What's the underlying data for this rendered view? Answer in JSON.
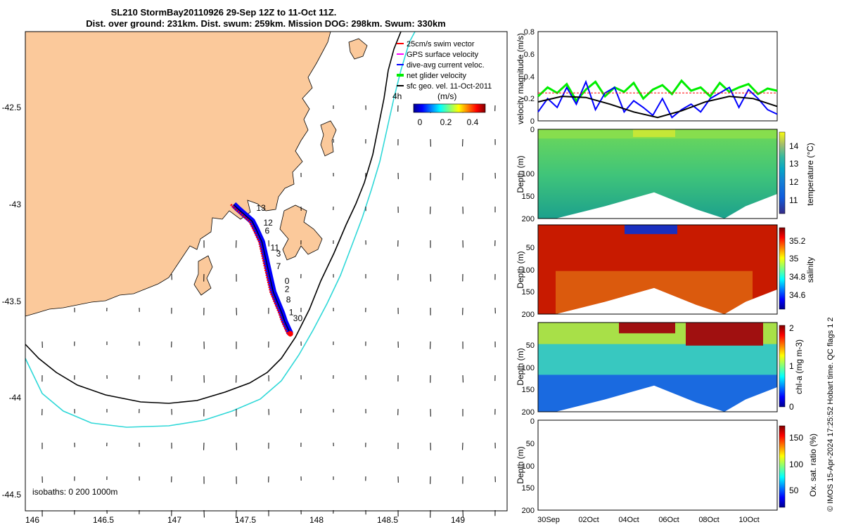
{
  "title_line1": "SL210 StormBay20110926 29-Sep 12Z to 11-Oct 11Z.",
  "title_line2": "Dist. over ground: 231km. Dist. swum: 259km. Mission DOG: 298km. Swum: 330km",
  "colors": {
    "land": "#fbc99b",
    "bathy_200": "#000000",
    "bathy_1000": "#2fd8d8",
    "track_red": "#ff0000",
    "track_blue": "#0000ff",
    "net_green": "#00ee00",
    "gps_magenta": "#ff00ff",
    "geo_black": "#000000"
  },
  "chart_data": [
    {
      "type": "scatter",
      "name": "map",
      "xlim": [
        145.95,
        149.35
      ],
      "ylim": [
        -44.55,
        -42.25
      ],
      "x_ticks": [
        146,
        146.5,
        147,
        147.5,
        148,
        148.5,
        149
      ],
      "x_tick_labels": [
        "146",
        "146.5",
        "147",
        "147.5",
        "148",
        "148.5",
        "149"
      ],
      "y_ticks": [
        -42.5,
        -43,
        -43.5,
        -44,
        -44.5
      ],
      "y_tick_labels": [
        "-42.5",
        "-43",
        "-43.5",
        "-44",
        "-44.5"
      ],
      "legend": [
        {
          "label": "25cm/s swim vector",
          "color": "#ff0000"
        },
        {
          "label": "GPS surface velocity",
          "color": "#ff00ff"
        },
        {
          "label": "dive-avg current veloc.",
          "color": "#0000ff"
        },
        {
          "label": "net glider velocity",
          "color": "#00ee00"
        },
        {
          "label": "sfc geo. vel. 11-Oct-2011",
          "color": "#000000"
        }
      ],
      "colorbar_title": "(m/s)",
      "colorbar_ticks": [
        "0",
        "0.2",
        "0.4"
      ],
      "colorbar_range": [
        0,
        0.5
      ],
      "hours_label": "4h",
      "isobath_label": "isobaths: 0   200  1000m",
      "track": [
        [
          147.42,
          -43.08
        ],
        [
          147.45,
          -43.1
        ],
        [
          147.5,
          -43.13
        ],
        [
          147.55,
          -43.16
        ],
        [
          147.58,
          -43.2
        ],
        [
          147.62,
          -43.26
        ],
        [
          147.64,
          -43.32
        ],
        [
          147.66,
          -43.38
        ],
        [
          147.68,
          -43.44
        ],
        [
          147.7,
          -43.5
        ],
        [
          147.73,
          -43.55
        ],
        [
          147.76,
          -43.6
        ],
        [
          147.78,
          -43.64
        ],
        [
          147.8,
          -43.67
        ],
        [
          147.82,
          -43.7
        ]
      ],
      "day_labels": [
        {
          "label": "13",
          "lon": 147.58,
          "lat": -43.11
        },
        {
          "label": "12",
          "lon": 147.63,
          "lat": -43.18
        },
        {
          "label": "6",
          "lon": 147.64,
          "lat": -43.22
        },
        {
          "label": "11",
          "lon": 147.68,
          "lat": -43.3
        },
        {
          "label": "3",
          "lon": 147.72,
          "lat": -43.33
        },
        {
          "label": "7",
          "lon": 147.72,
          "lat": -43.39
        },
        {
          "label": "0",
          "lon": 147.78,
          "lat": -43.46
        },
        {
          "label": "2",
          "lon": 147.78,
          "lat": -43.5
        },
        {
          "label": "8",
          "lon": 147.79,
          "lat": -43.55
        },
        {
          "label": "1",
          "lon": 147.81,
          "lat": -43.61
        },
        {
          "label": "30",
          "lon": 147.84,
          "lat": -43.64
        }
      ]
    },
    {
      "type": "line",
      "name": "velocity",
      "ylabel": "velocity magnitude (m/s)",
      "ylim": [
        0,
        0.8
      ],
      "y_ticks": [
        0,
        0.2,
        0.4,
        0.6,
        0.8
      ],
      "y_tick_labels": [
        "0",
        "0.2",
        "0.4",
        "0.6",
        "0.8"
      ],
      "series": [
        {
          "name": "net glider velocity",
          "color": "#00ee00",
          "x": [
            0,
            4,
            8,
            12,
            16,
            20,
            24,
            28,
            32,
            36,
            40,
            44,
            48,
            52,
            56,
            60,
            64,
            68,
            72,
            76,
            80,
            84,
            88,
            92,
            96,
            100
          ],
          "values": [
            0.22,
            0.3,
            0.25,
            0.33,
            0.18,
            0.28,
            0.35,
            0.22,
            0.3,
            0.26,
            0.34,
            0.2,
            0.28,
            0.32,
            0.24,
            0.36,
            0.27,
            0.3,
            0.22,
            0.34,
            0.26,
            0.3,
            0.33,
            0.24,
            0.29,
            0.27
          ]
        },
        {
          "name": "dive-avg current veloc.",
          "color": "#0000ff",
          "x": [
            0,
            4,
            8,
            12,
            16,
            20,
            24,
            28,
            32,
            36,
            40,
            44,
            48,
            52,
            56,
            60,
            64,
            68,
            72,
            76,
            80,
            84,
            88,
            92,
            96,
            100
          ],
          "values": [
            0.08,
            0.2,
            0.12,
            0.3,
            0.15,
            0.35,
            0.1,
            0.25,
            0.3,
            0.08,
            0.18,
            0.12,
            0.05,
            0.2,
            0.03,
            0.1,
            0.15,
            0.08,
            0.2,
            0.25,
            0.3,
            0.12,
            0.28,
            0.2,
            0.1,
            0.06
          ]
        },
        {
          "name": "sfc geo. vel.",
          "color": "#000000",
          "x": [
            0,
            10,
            20,
            30,
            40,
            50,
            60,
            70,
            80,
            90,
            100
          ],
          "values": [
            0.17,
            0.22,
            0.21,
            0.15,
            0.08,
            0.03,
            0.09,
            0.17,
            0.22,
            0.2,
            0.13
          ]
        },
        {
          "name": "swim speed",
          "color": "#ff0000",
          "x": [
            0,
            20,
            40,
            60,
            80,
            100
          ],
          "values": [
            0.25,
            0.25,
            0.25,
            0.25,
            0.25,
            0.25
          ]
        }
      ]
    },
    {
      "type": "heatmap",
      "name": "temperature",
      "ylabel": "Depth (m)",
      "colorbar_label": "temperature (°C)",
      "colorbar_ticks": [
        "11",
        "12",
        "13",
        "14"
      ],
      "colorbar_range": [
        10.5,
        14.8
      ],
      "ylim": [
        200,
        0
      ],
      "y_tick_labels": [
        "0",
        "50",
        "100",
        "150",
        "200"
      ]
    },
    {
      "type": "heatmap",
      "name": "salinity",
      "ylabel": "Depth (m)",
      "colorbar_label": "salinity",
      "colorbar_ticks": [
        "34.6",
        "34.8",
        "35",
        "35.2"
      ],
      "colorbar_range": [
        34.5,
        35.3
      ],
      "ylim": [
        200,
        0
      ],
      "y_tick_labels": [
        "0",
        "50",
        "100",
        "150",
        "200"
      ]
    },
    {
      "type": "heatmap",
      "name": "chlorophyll",
      "ylabel": "Depth (m)",
      "colorbar_label": "chl-a (mg m-3)",
      "colorbar_ticks": [
        "0",
        "1",
        "2"
      ],
      "colorbar_range": [
        0,
        2
      ],
      "ylim": [
        200,
        0
      ],
      "y_tick_labels": [
        "0",
        "50",
        "100",
        "150",
        "200"
      ]
    },
    {
      "type": "heatmap",
      "name": "oxygen",
      "ylabel": "Depth (m)",
      "colorbar_label": "Ox. sat. ratio (%)",
      "colorbar_ticks": [
        "50",
        "100",
        "150"
      ],
      "colorbar_range": [
        25,
        175
      ],
      "ylim": [
        200,
        0
      ],
      "y_tick_labels": [
        "0",
        "50",
        "100",
        "150",
        "200"
      ],
      "x_tick_labels": [
        "30Sep",
        "02Oct",
        "04Oct",
        "06Oct",
        "08Oct",
        "10Oct"
      ]
    }
  ],
  "credit": "© IMOS 15-Apr-2024 17:25:52 Hobart time. QC flags 1  2"
}
